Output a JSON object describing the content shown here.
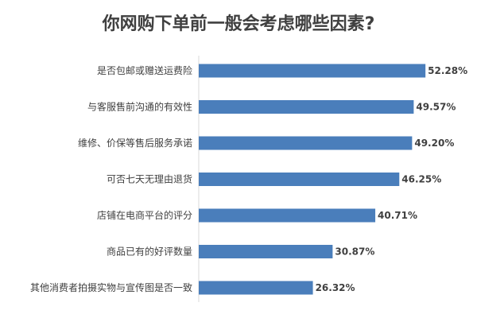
{
  "chart_data": {
    "type": "bar",
    "orientation": "horizontal",
    "title": "你网购下单前一般会考虑哪些因素?",
    "categories": [
      "是否包邮或赠送运费险",
      "与客服售前沟通的有效性",
      "维修、价保等售后服务承诺",
      "可否七天无理由退货",
      "店铺在电商平台的评分",
      "商品已有的好评数量",
      "其他消费者拍摄实物与宣传图是否一致"
    ],
    "values": [
      52.28,
      49.57,
      49.2,
      46.25,
      40.71,
      30.87,
      26.32
    ],
    "value_labels": [
      "52.28%",
      "49.57%",
      "49.20%",
      "46.25%",
      "40.71%",
      "30.87%",
      "26.32%"
    ],
    "value_unit": "%",
    "xlim": [
      0,
      55
    ],
    "bar_color": "#4a7ebb",
    "grid": false,
    "legend": "none"
  }
}
